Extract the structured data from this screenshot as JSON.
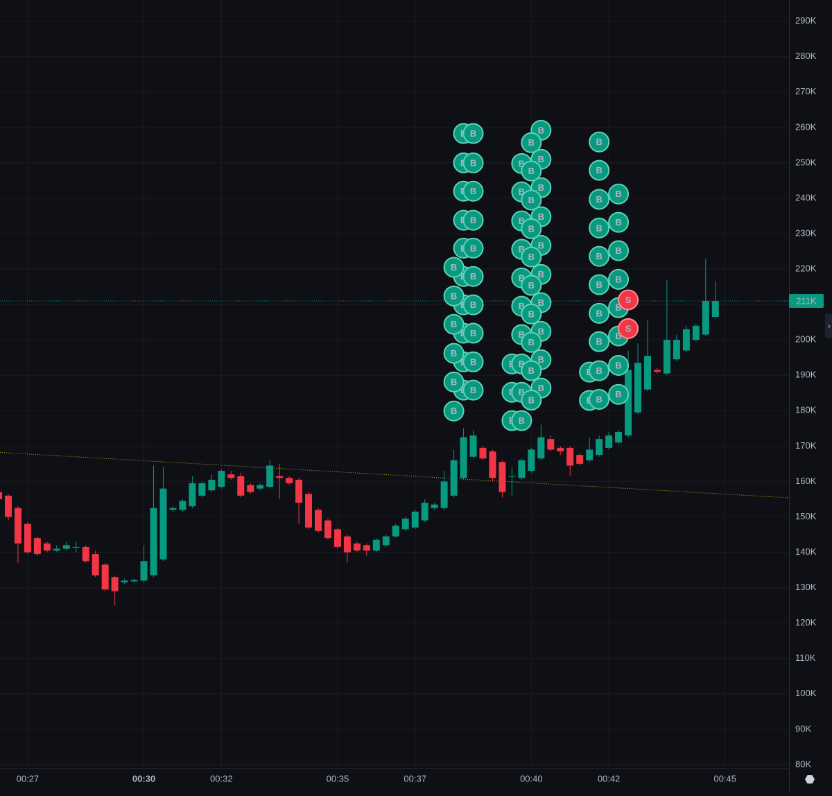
{
  "chart_data": {
    "type": "candlestick",
    "up_color": "#089981",
    "down_color": "#f23645",
    "grid": true,
    "categories": [
      null,
      null,
      null,
      "00:27",
      null,
      null,
      null,
      null,
      null,
      null,
      null,
      null,
      null,
      null,
      null,
      "00:30",
      null,
      null,
      null,
      null,
      null,
      null,
      null,
      "00:32",
      null,
      null,
      null,
      null,
      null,
      null,
      null,
      null,
      null,
      null,
      null,
      "00:35",
      null,
      null,
      null,
      null,
      null,
      null,
      null,
      "00:37",
      null,
      null,
      null,
      null,
      null,
      null,
      null,
      null,
      null,
      null,
      null,
      "00:40",
      null,
      null,
      null,
      null,
      null,
      null,
      null,
      "00:42",
      null,
      null,
      null,
      null,
      null,
      null,
      null,
      null,
      null,
      null,
      null,
      "00:45"
    ],
    "open": [
      157,
      156,
      152.5,
      148,
      144,
      142.5,
      140.5,
      141,
      141.5,
      141.5,
      139.5,
      136.5,
      133,
      131.5,
      131.8,
      132,
      133.5,
      138,
      152,
      152,
      153,
      156,
      157.5,
      158.5,
      162,
      161.5,
      159,
      158,
      158.5,
      161.5,
      161,
      160.5,
      156.5,
      152,
      149,
      146.5,
      144.5,
      142.5,
      142,
      140.5,
      142,
      144.5,
      146.5,
      147,
      149,
      152.5,
      152.5,
      156,
      161,
      167,
      169.5,
      168.5,
      165.5,
      161.5,
      161,
      163,
      166.5,
      172,
      169.5,
      169.5,
      167.5,
      166,
      167.5,
      169.5,
      171,
      173,
      179.5,
      186,
      191.5,
      190.5,
      194.5,
      197,
      200,
      201.5,
      206.5,
      null
    ],
    "high": [
      158,
      156.5,
      153,
      148.5,
      144.5,
      143,
      142,
      143,
      143,
      142,
      140.5,
      137,
      133.5,
      132.5,
      132.5,
      142,
      164.5,
      164,
      153,
      155,
      161.5,
      160,
      162,
      163.5,
      163,
      162.5,
      159.5,
      159.5,
      166,
      165,
      161.5,
      161,
      157,
      152.5,
      149.5,
      147,
      145,
      143,
      142.5,
      144,
      145,
      148,
      150,
      152,
      155,
      154,
      163,
      169,
      175,
      174.5,
      170,
      169,
      166,
      164,
      166.5,
      169.5,
      176,
      173,
      170,
      170,
      168,
      172.5,
      173,
      174,
      174.5,
      197,
      199,
      205.5,
      192,
      217,
      201.5,
      204,
      204.5,
      223,
      216.5,
      null
    ],
    "low": [
      154.5,
      149,
      137,
      139.5,
      139,
      140,
      140,
      140.5,
      140,
      137,
      133,
      129,
      125,
      131,
      131.5,
      131.5,
      133,
      137.5,
      151.5,
      151.5,
      152.5,
      155.5,
      157,
      158,
      160.5,
      155.5,
      156.5,
      157.5,
      158,
      155,
      159,
      148,
      146.5,
      145.5,
      143.5,
      141,
      137,
      140,
      139,
      140,
      141.5,
      144,
      146,
      146.5,
      148.5,
      152,
      152,
      155.5,
      160.5,
      166.5,
      166,
      160,
      155.5,
      156,
      160.5,
      162.5,
      166,
      168.5,
      167.5,
      161.5,
      164.5,
      165.5,
      167,
      169,
      170.5,
      172.5,
      179,
      185.5,
      190.5,
      190,
      194,
      196.5,
      199.5,
      201,
      206,
      null
    ],
    "close": [
      155,
      150,
      142.5,
      140,
      139.5,
      140.5,
      141,
      142,
      141.5,
      137.5,
      133.5,
      129.5,
      129,
      132,
      132.2,
      137.5,
      152.5,
      158,
      152.5,
      154.5,
      159.5,
      159.5,
      160.5,
      163,
      161,
      156,
      157,
      159,
      164.5,
      161,
      159.5,
      154,
      147,
      146,
      144,
      141.5,
      140,
      140.5,
      140.5,
      143.5,
      144.5,
      147.5,
      149.5,
      151.5,
      154,
      153.5,
      160,
      166,
      172.5,
      173,
      166.5,
      161,
      157,
      161.5,
      166,
      169,
      172.5,
      169,
      168.5,
      164.5,
      165,
      169,
      172,
      173,
      174,
      191.5,
      193.5,
      195.5,
      191,
      200,
      200,
      203,
      204,
      211,
      211,
      null
    ],
    "ylim": [
      79,
      296
    ],
    "yticks": [
      {
        "value": 80,
        "label": "80K"
      },
      {
        "value": 90,
        "label": "90K"
      },
      {
        "value": 100,
        "label": "100K"
      },
      {
        "value": 110,
        "label": "110K"
      },
      {
        "value": 120,
        "label": "120K"
      },
      {
        "value": 130,
        "label": "130K"
      },
      {
        "value": 140,
        "label": "140K"
      },
      {
        "value": 150,
        "label": "150K"
      },
      {
        "value": 160,
        "label": "160K"
      },
      {
        "value": 170,
        "label": "170K"
      },
      {
        "value": 180,
        "label": "180K"
      },
      {
        "value": 190,
        "label": "190K"
      },
      {
        "value": 200,
        "label": "200K"
      },
      {
        "value": 210,
        "label": "210K"
      },
      {
        "value": 220,
        "label": "220K"
      },
      {
        "value": 230,
        "label": "230K"
      },
      {
        "value": 240,
        "label": "240K"
      },
      {
        "value": 250,
        "label": "250K"
      },
      {
        "value": 260,
        "label": "260K"
      },
      {
        "value": 270,
        "label": "270K"
      },
      {
        "value": 280,
        "label": "280K"
      },
      {
        "value": 290,
        "label": "290K"
      }
    ],
    "last_price": {
      "value": 211,
      "label": "211K"
    },
    "trendline": [
      168.2,
      155.4
    ],
    "markers": [
      {
        "label": "B",
        "color": "#089981",
        "at": 48,
        "prices": [
          258.3,
          250.0,
          242.0,
          233.8,
          225.9,
          217.9,
          209.9,
          201.9,
          193.8,
          185.8
        ]
      },
      {
        "label": "B",
        "color": "#089981",
        "at": 47,
        "prices": [
          220.5,
          212.4,
          204.4,
          196.2,
          188.1,
          179.9
        ]
      },
      {
        "label": "B",
        "color": "#089981",
        "at": 49,
        "prices": [
          258.3,
          250.0,
          242.0,
          233.8,
          225.9,
          217.9,
          209.9,
          201.9,
          193.8,
          185.8
        ]
      },
      {
        "label": "B",
        "color": "#089981",
        "at": 53,
        "prices": [
          193.2,
          185.2,
          177.2
        ]
      },
      {
        "label": "B",
        "color": "#089981",
        "at": 54,
        "prices": [
          249.8,
          241.8,
          233.6,
          225.6,
          217.5,
          209.5,
          201.5,
          193.2,
          185.2,
          177.2
        ]
      },
      {
        "label": "B",
        "color": "#089981",
        "at": 56,
        "prices": [
          259.2,
          251.0,
          243.0,
          234.8,
          226.7,
          218.5,
          210.5,
          202.4,
          194.4,
          186.4
        ]
      },
      {
        "label": "B",
        "color": "#089981",
        "at": 55,
        "prices": [
          255.7,
          247.7,
          239.5,
          231.4,
          223.4,
          215.4,
          207.3,
          199.3,
          191.3,
          183.0
        ]
      },
      {
        "label": "B",
        "color": "#089981",
        "at": 61,
        "prices": [
          190.9,
          182.9
        ]
      },
      {
        "label": "B",
        "color": "#089981",
        "at": 62,
        "prices": [
          255.9,
          247.9,
          239.7,
          231.6,
          223.6,
          215.6,
          207.5,
          199.5,
          191.3,
          183.2
        ]
      },
      {
        "label": "B",
        "color": "#089981",
        "at": 64,
        "prices": [
          241.2,
          233.2,
          225.2,
          217.1,
          209.1,
          201.1,
          192.8,
          184.6
        ]
      },
      {
        "label": "S",
        "color": "#f23645",
        "at": 65,
        "prices": [
          211.3,
          203.2
        ]
      }
    ]
  }
}
